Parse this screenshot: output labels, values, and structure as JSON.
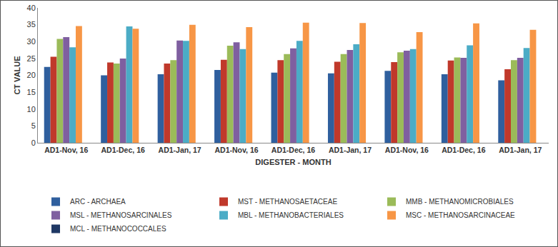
{
  "chart_data": {
    "type": "bar",
    "x_label": "DIGESTER - MONTH",
    "y_label": "CT VALUE",
    "categories": [
      "AD1-Nov, 16",
      "AD1-Dec, 16",
      "AD1-Jan, 17",
      "AD1-Nov, 16",
      "AD1-Dec, 16",
      "AD1-Jan, 17",
      "AD1-Nov, 16",
      "AD1-Dec, 16",
      "AD1-Jan, 17"
    ],
    "series": [
      {
        "name": "ARC - ARCHAEA",
        "color": "#2f5f9e",
        "values": [
          22.5,
          20.0,
          20.3,
          21.6,
          20.8,
          20.6,
          21.3,
          20.3,
          18.5
        ]
      },
      {
        "name": "MST - METHANOSAETACEAE",
        "color": "#c0392b",
        "values": [
          25.5,
          23.8,
          23.5,
          24.6,
          24.5,
          24.0,
          23.9,
          24.4,
          21.8
        ]
      },
      {
        "name": "MMB - METHANOMICROBIALES",
        "color": "#9bbb59",
        "values": [
          30.8,
          23.5,
          24.5,
          28.8,
          26.3,
          26.3,
          26.8,
          25.3,
          24.5
        ]
      },
      {
        "name": "MSL - METHANOSARCINALES",
        "color": "#7f5fa0",
        "values": [
          31.3,
          25.0,
          30.3,
          29.8,
          28.0,
          27.5,
          27.3,
          25.2,
          25.2
        ]
      },
      {
        "name": "MBL - METHANOBACTERIALES",
        "color": "#4bacc6",
        "values": [
          28.3,
          34.5,
          30.2,
          27.8,
          30.2,
          29.2,
          27.8,
          28.9,
          28.1
        ]
      },
      {
        "name": "MSC - METHANOSARCINACEAE",
        "color": "#f79646",
        "values": [
          34.6,
          33.8,
          35.0,
          34.3,
          35.6,
          35.5,
          32.8,
          35.4,
          33.5
        ]
      },
      {
        "name": "MCL - METHANOCOCCALES",
        "color": "#1f3864",
        "values": [
          null,
          null,
          null,
          null,
          null,
          null,
          null,
          null,
          null
        ]
      }
    ],
    "ylim": [
      0,
      40
    ],
    "yticks": [
      0,
      5,
      10,
      15,
      20,
      25,
      30,
      35,
      40
    ],
    "grid": false,
    "legend": "bottom"
  }
}
